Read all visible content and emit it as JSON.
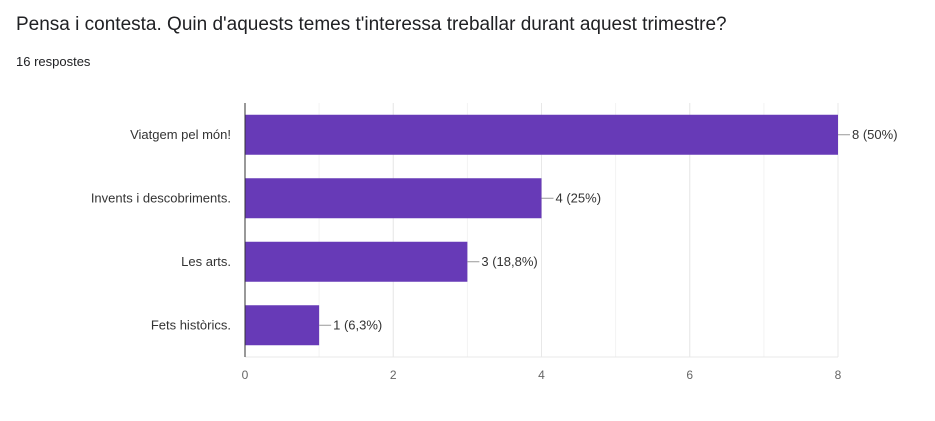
{
  "question": "Pensa i contesta. Quin d'aquests temes t'interessa treballar durant aquest trimestre?",
  "response_count": "16 respostes",
  "colors": {
    "bar": "#673ab7",
    "grid": "#e8e8e8",
    "axis": "#333333",
    "label": "#333333",
    "tick": "#666666"
  },
  "chart_data": {
    "type": "bar",
    "orientation": "horizontal",
    "categories": [
      "Viatgem pel món!",
      "Invents i descobriments.",
      "Les arts.",
      "Fets històrics."
    ],
    "values": [
      8,
      4,
      3,
      1
    ],
    "data_labels": [
      "8 (50%)",
      "4 (25%)",
      "3 (18,8%)",
      "1 (6,3%)"
    ],
    "xlim": [
      0,
      8
    ],
    "x_ticks": [
      0,
      2,
      4,
      6,
      8
    ],
    "grid": true,
    "title": "",
    "xlabel": "",
    "ylabel": ""
  }
}
